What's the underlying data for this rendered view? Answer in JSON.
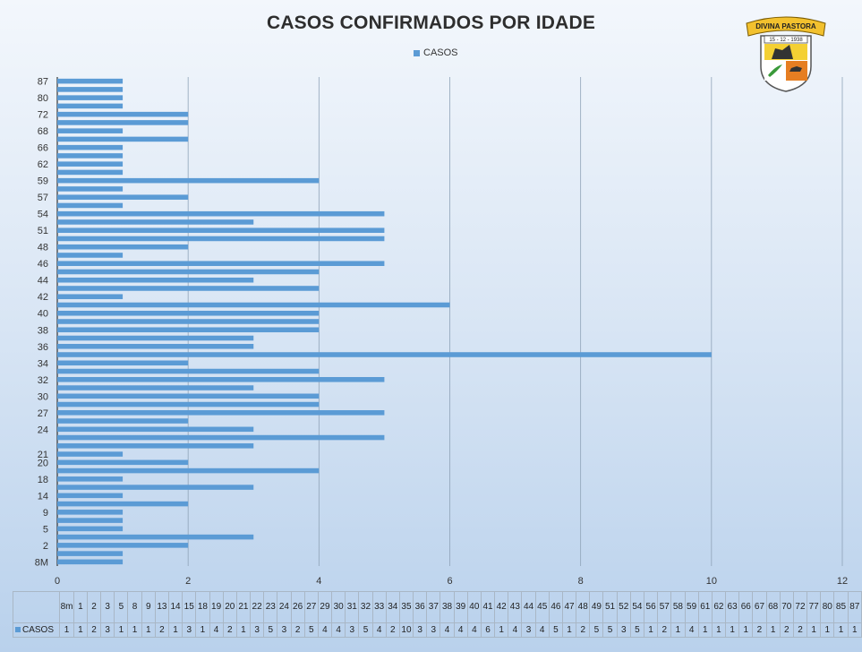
{
  "chart_data": {
    "type": "bar",
    "orientation": "horizontal",
    "title": "CASOS CONFIRMADOS POR IDADE",
    "categories": [
      "8M",
      "1",
      "2",
      "3",
      "5",
      "8",
      "9",
      "13",
      "14",
      "15",
      "18",
      "19",
      "20",
      "21",
      "22",
      "23",
      "24",
      "26",
      "27",
      "29",
      "30",
      "31",
      "32",
      "33",
      "34",
      "35",
      "36",
      "37",
      "38",
      "39",
      "40",
      "41",
      "42",
      "43",
      "44",
      "45",
      "46",
      "47",
      "48",
      "49",
      "51",
      "52",
      "54",
      "56",
      "57",
      "58",
      "59",
      "61",
      "62",
      "63",
      "66",
      "67",
      "68",
      "70",
      "72",
      "77",
      "80",
      "85",
      "87"
    ],
    "table_headers": [
      "8m",
      "1",
      "2",
      "3",
      "5",
      "8",
      "9",
      "13",
      "14",
      "15",
      "18",
      "19",
      "20",
      "21",
      "22",
      "23",
      "24",
      "26",
      "27",
      "29",
      "30",
      "31",
      "32",
      "33",
      "34",
      "35",
      "36",
      "37",
      "38",
      "39",
      "40",
      "41",
      "42",
      "43",
      "44",
      "45",
      "46",
      "47",
      "48",
      "49",
      "51",
      "52",
      "54",
      "56",
      "57",
      "58",
      "59",
      "61",
      "62",
      "63",
      "66",
      "67",
      "68",
      "70",
      "72",
      "77",
      "80",
      "85",
      "87"
    ],
    "y_tick_labels": [
      "8M",
      "2",
      "5",
      "9",
      "14",
      "18",
      "20",
      "21",
      "24",
      "27",
      "30",
      "32",
      "34",
      "36",
      "38",
      "40",
      "42",
      "44",
      "46",
      "48",
      "51",
      "54",
      "57",
      "59",
      "62",
      "66",
      "68",
      "72",
      "80",
      "87"
    ],
    "x_ticks": [
      0,
      2,
      4,
      6,
      8,
      10,
      12
    ],
    "xlim": [
      0,
      12
    ],
    "series": [
      {
        "name": "CASOS",
        "color": "#5b9bd5",
        "values": [
          1,
          1,
          2,
          3,
          1,
          1,
          1,
          2,
          1,
          3,
          1,
          4,
          2,
          1,
          3,
          5,
          3,
          2,
          5,
          4,
          4,
          3,
          5,
          4,
          2,
          10,
          3,
          3,
          4,
          4,
          4,
          6,
          1,
          4,
          3,
          4,
          5,
          1,
          2,
          5,
          5,
          3,
          5,
          1,
          2,
          1,
          4,
          1,
          1,
          1,
          1,
          2,
          1,
          2,
          2,
          1,
          1,
          1,
          1
        ]
      }
    ],
    "grid": true,
    "legend_position": "top"
  },
  "logo": {
    "banner_text": "DIVINA PASTORA",
    "date_text": "15 - 12 - 1938"
  }
}
